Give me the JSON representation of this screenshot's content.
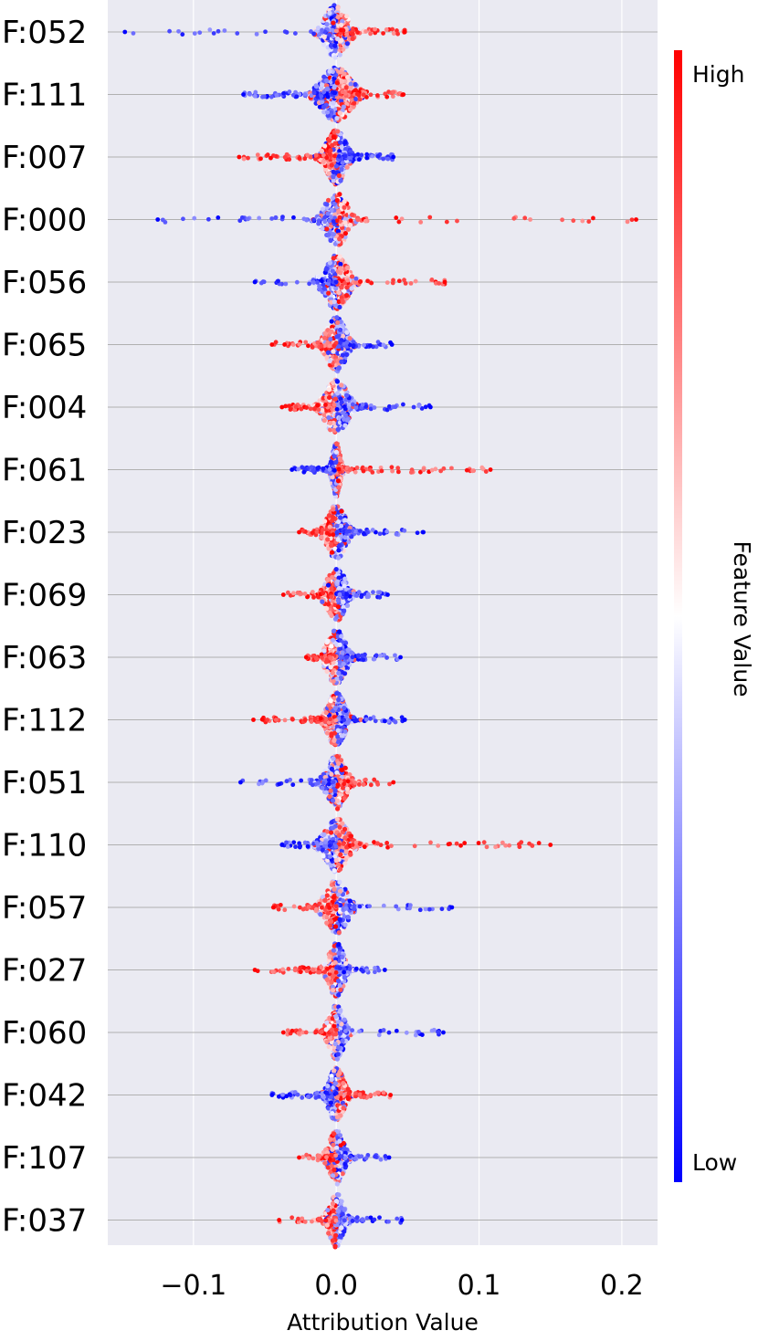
{
  "chart_data": {
    "type": "scatter",
    "subtype": "beeswarm-attribution-summary",
    "xlabel": "Attribution Value",
    "xlim": [
      -0.16,
      0.225
    ],
    "xticks": [
      -0.1,
      0.0,
      0.1,
      0.2
    ],
    "xtick_labels": [
      "−0.1",
      "0.0",
      "0.1",
      "0.2"
    ],
    "colorbar": {
      "label": "Feature Value",
      "high_label": "High",
      "low_label": "Low",
      "high_color": "#ff0000",
      "mid_color": "#ffffff",
      "low_color": "#0000ff"
    },
    "colors": {
      "background": "#eaeaf2",
      "row_line": "#b0b0b0",
      "grid": "#ffffff"
    },
    "features": [
      {
        "label": "F:052",
        "min": -0.148,
        "max": 0.048,
        "spread": 0.012,
        "density": 1.0,
        "tail": "low-left"
      },
      {
        "label": "F:111",
        "min": -0.065,
        "max": 0.047,
        "spread": 0.016,
        "density": 1.9,
        "tail": "high-right"
      },
      {
        "label": "F:007",
        "min": -0.068,
        "max": 0.04,
        "spread": 0.01,
        "density": 1.9,
        "tail": "low-right"
      },
      {
        "label": "F:000",
        "min": -0.125,
        "max": 0.21,
        "spread": 0.012,
        "density": 1.0,
        "tail": "low-left"
      },
      {
        "label": "F:056",
        "min": -0.057,
        "max": 0.076,
        "spread": 0.012,
        "density": 1.1,
        "tail": "low-left"
      },
      {
        "label": "F:065",
        "min": -0.045,
        "max": 0.039,
        "spread": 0.01,
        "density": 1.3,
        "tail": "high-left"
      },
      {
        "label": "F:004",
        "min": -0.038,
        "max": 0.066,
        "spread": 0.012,
        "density": 1.1,
        "tail": "high-left"
      },
      {
        "label": "F:061",
        "min": -0.031,
        "max": 0.108,
        "spread": 0.004,
        "density": 1.8,
        "tail": "high-right"
      },
      {
        "label": "F:023",
        "min": -0.026,
        "max": 0.061,
        "spread": 0.01,
        "density": 1.2,
        "tail": "low-right"
      },
      {
        "label": "F:069",
        "min": -0.037,
        "max": 0.036,
        "spread": 0.01,
        "density": 1.2,
        "tail": "high-left"
      },
      {
        "label": "F:063",
        "min": -0.021,
        "max": 0.045,
        "spread": 0.01,
        "density": 1.3,
        "tail": "low-right"
      },
      {
        "label": "F:112",
        "min": -0.058,
        "max": 0.048,
        "spread": 0.009,
        "density": 1.7,
        "tail": "high-left"
      },
      {
        "label": "F:051",
        "min": -0.067,
        "max": 0.04,
        "spread": 0.01,
        "density": 1.1,
        "tail": "low-left"
      },
      {
        "label": "F:110",
        "min": -0.038,
        "max": 0.15,
        "spread": 0.012,
        "density": 1.5,
        "tail": "high-right"
      },
      {
        "label": "F:057",
        "min": -0.044,
        "max": 0.081,
        "spread": 0.012,
        "density": 1.1,
        "tail": "low-right"
      },
      {
        "label": "F:027",
        "min": -0.057,
        "max": 0.034,
        "spread": 0.008,
        "density": 1.3,
        "tail": "high-left"
      },
      {
        "label": "F:060",
        "min": -0.037,
        "max": 0.075,
        "spread": 0.008,
        "density": 1.0,
        "tail": "low-right"
      },
      {
        "label": "F:042",
        "min": -0.045,
        "max": 0.038,
        "spread": 0.008,
        "density": 1.5,
        "tail": "low-left"
      },
      {
        "label": "F:107",
        "min": -0.026,
        "max": 0.037,
        "spread": 0.008,
        "density": 1.0,
        "tail": "low-right"
      },
      {
        "label": "F:037",
        "min": -0.04,
        "max": 0.046,
        "spread": 0.008,
        "density": 1.0,
        "tail": "low-right"
      }
    ]
  }
}
